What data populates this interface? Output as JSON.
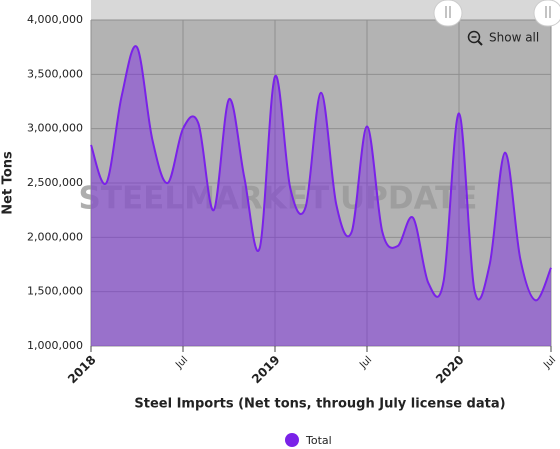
{
  "chart_data": {
    "type": "area",
    "x_axis_label": "Steel Imports (Net tons, through July license data)",
    "y_axis_label": "Net Tons",
    "watermark": "STEELMARKET UPDATE",
    "button": "Show all",
    "categories": [
      "2018",
      null,
      null,
      null,
      null,
      null,
      "Jul",
      null,
      null,
      null,
      null,
      null,
      "2019",
      null,
      null,
      null,
      null,
      null,
      "Jul",
      null,
      null,
      null,
      null,
      null,
      "2020",
      null,
      null,
      null,
      null,
      null,
      "Jul"
    ],
    "series": [
      {
        "name": "Total",
        "color": "#7a22e8",
        "values": [
          2850000,
          2500000,
          3300000,
          3750000,
          2900000,
          2500000,
          3000000,
          3050000,
          2250000,
          3270000,
          2550000,
          1900000,
          3480000,
          2450000,
          2280000,
          3330000,
          2300000,
          2050000,
          3020000,
          2050000,
          1920000,
          2180000,
          1580000,
          1600000,
          3140000,
          1520000,
          1750000,
          2780000,
          1800000,
          1420000,
          1720000
        ]
      }
    ],
    "ylim": [
      1000000,
      4000000
    ],
    "yticks": [
      {
        "value": 1000000,
        "label": "1,000,000"
      },
      {
        "value": 1500000,
        "label": "1,500,000"
      },
      {
        "value": 2000000,
        "label": "2,000,000"
      },
      {
        "value": 2500000,
        "label": "2,500,000"
      },
      {
        "value": 3000000,
        "label": "3,000,000"
      },
      {
        "value": 3500000,
        "label": "3,500,000"
      },
      {
        "value": 4000000,
        "label": "4,000,000"
      }
    ],
    "grid": true,
    "legend": "bottom"
  }
}
